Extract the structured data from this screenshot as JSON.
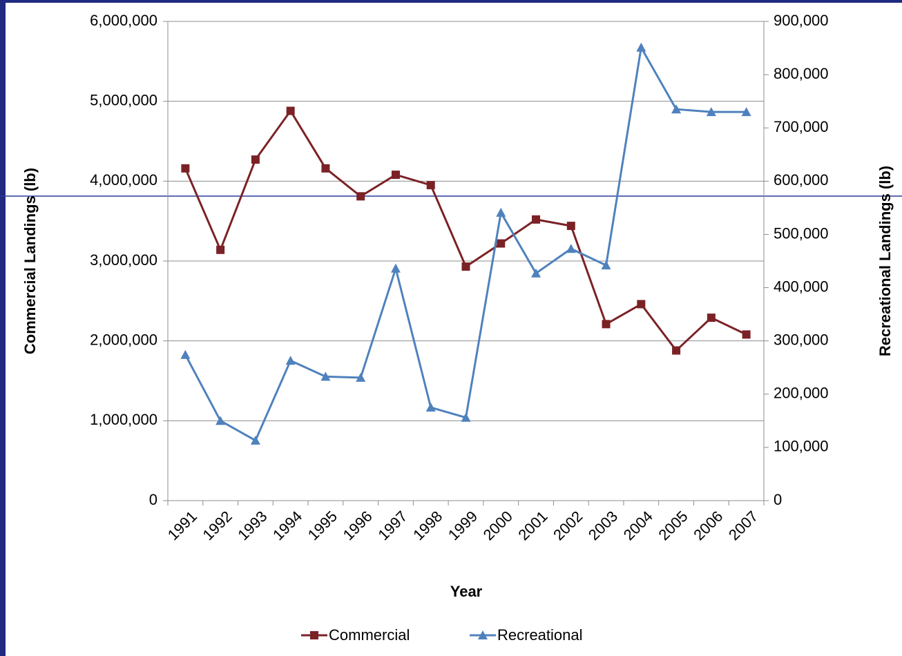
{
  "chart_data": {
    "type": "line",
    "x_label": "Year",
    "y_label": "Commercial Landings (lb)",
    "y2_label": "Recreational Landings (lb)",
    "categories": [
      "1991",
      "1992",
      "1993",
      "1994",
      "1995",
      "1996",
      "1997",
      "1998",
      "1999",
      "2000",
      "2001",
      "2002",
      "2003",
      "2004",
      "2005",
      "2006",
      "2007"
    ],
    "series": [
      {
        "name": "Commercial",
        "color": "#7b2226",
        "marker": "square",
        "values": [
          4160000,
          3140000,
          4270000,
          4880000,
          4160000,
          3810000,
          4080000,
          3950000,
          2930000,
          3220000,
          3520000,
          3440000,
          2210000,
          2460000,
          1880000,
          2290000,
          2080000
        ]
      },
      {
        "name": "Recreational",
        "color": "#4f81bd",
        "marker": "triangle",
        "axis": "y2",
        "values": [
          274000,
          150000,
          113000,
          263000,
          233000,
          231000,
          436000,
          175000,
          156000,
          541000,
          427000,
          473000,
          442000,
          851000,
          735000,
          730000,
          730000
        ]
      }
    ],
    "ylim": [
      0,
      6000000
    ],
    "yticks": [
      0,
      {
        "value": 1000000,
        "label": "1,000,000"
      },
      {
        "value": 2000000,
        "label": "2,000,000"
      },
      {
        "value": 3000000,
        "label": "3,000,000"
      },
      {
        "value": 4000000,
        "label": "4,000,000"
      },
      {
        "value": 5000000,
        "label": "5,000,000"
      },
      {
        "value": 6000000,
        "label": "6,000,000"
      }
    ],
    "y2lim": [
      0,
      900000
    ],
    "y2ticks": [
      0,
      {
        "value": 100000,
        "label": "100,000"
      },
      {
        "value": 200000,
        "label": "200,000"
      },
      {
        "value": 300000,
        "label": "300,000"
      },
      {
        "value": 400000,
        "label": "400,000"
      },
      {
        "value": 500000,
        "label": "500,000"
      },
      {
        "value": 600000,
        "label": "600,000"
      },
      {
        "value": 700000,
        "label": "700,000"
      },
      {
        "value": 800000,
        "label": "800,000"
      },
      {
        "value": 900000,
        "label": "900,000"
      }
    ],
    "grid": true,
    "legend": "bottom"
  }
}
